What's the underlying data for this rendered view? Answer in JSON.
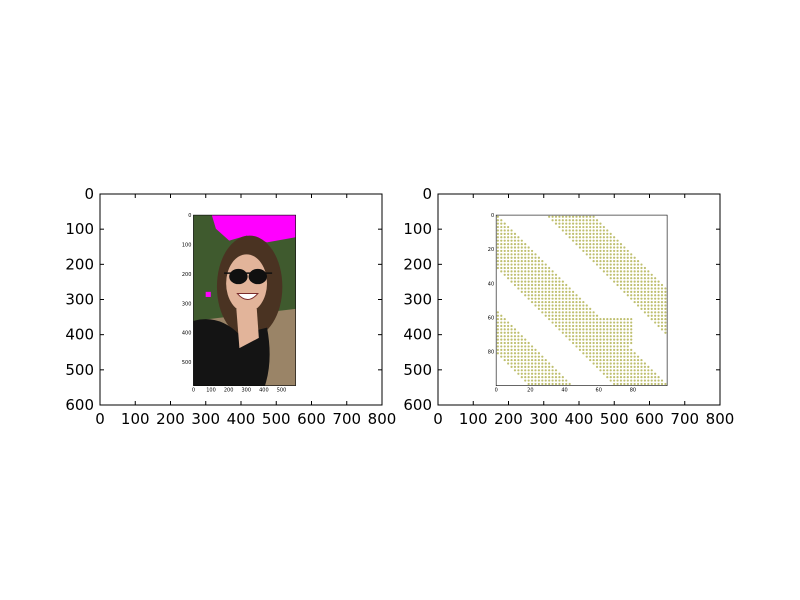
{
  "chart_data": [
    {
      "type": "image",
      "xlim": [
        0,
        800
      ],
      "ylim": [
        600,
        0
      ],
      "x_ticks": [
        0,
        100,
        200,
        300,
        400,
        500,
        600,
        700,
        800
      ],
      "y_ticks": [
        0,
        100,
        200,
        300,
        400,
        500,
        600
      ],
      "image_extent": {
        "x": [
          265,
          555
        ],
        "y": [
          60,
          545
        ]
      },
      "image": {
        "content": "photo-of-smiling-woman-in-sunglasses",
        "x_ticks": [
          "0",
          "100",
          "200",
          "300",
          "400",
          "500"
        ],
        "y_ticks": [
          "0",
          "100",
          "200",
          "300",
          "400",
          "500"
        ],
        "colors": {
          "sky": "#ff00ff",
          "trees": "#3f5a2e",
          "ground": "#9a8467",
          "hair": "#4a3322",
          "skin": "#e2b49a",
          "shirt": "#141414"
        }
      }
    },
    {
      "type": "scatter",
      "xlim": [
        0,
        800
      ],
      "ylim": [
        600,
        0
      ],
      "x_ticks": [
        0,
        100,
        200,
        300,
        400,
        500,
        600,
        700,
        800
      ],
      "y_ticks": [
        0,
        100,
        200,
        300,
        400,
        500,
        600
      ],
      "image_extent": {
        "x": [
          165,
          650
        ],
        "y": [
          60,
          545
        ]
      },
      "inner_axes": {
        "xlim": [
          0,
          100
        ],
        "ylim": [
          100,
          0
        ],
        "x_ticks": [
          "0",
          "20",
          "40",
          "60",
          "80"
        ],
        "y_ticks": [
          "0",
          "20",
          "40",
          "60",
          "80"
        ]
      },
      "pattern": {
        "grid_step": 2,
        "diagonal_bands": [
          [
            -80,
            -56
          ],
          [
            -30,
            0
          ],
          [
            30,
            56
          ]
        ],
        "block": {
          "x": [
            60,
            80
          ],
          "y": [
            60,
            76
          ]
        },
        "point_color": "#bfbf6f"
      }
    }
  ]
}
